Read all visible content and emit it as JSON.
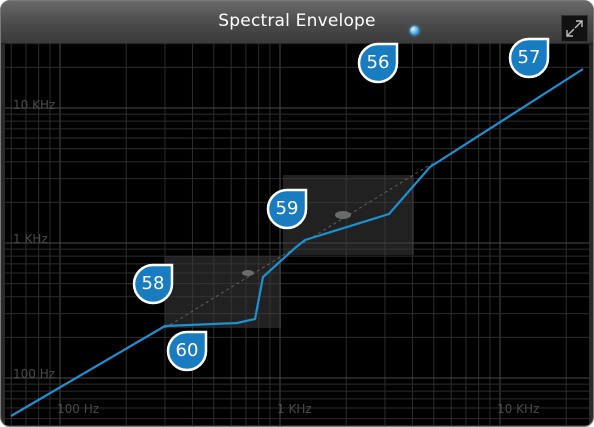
{
  "panel": {
    "title": "Spectral Envelope"
  },
  "icons": {
    "status": "status-dot-icon",
    "expand": "expand-icon"
  },
  "axes": {
    "x_labels": [
      "100 Hz",
      "1 KHz",
      "10 KHz"
    ],
    "y_labels": [
      "10 KHz",
      "1 KHz",
      "100 Hz"
    ],
    "scale": "log-log"
  },
  "callouts": [
    "56",
    "57",
    "58",
    "59",
    "60"
  ],
  "colors": {
    "curve": "#1e8fd0",
    "callout_fill": "#1a7cc0",
    "background": "#000000",
    "grid": "#3a3a3a"
  }
}
